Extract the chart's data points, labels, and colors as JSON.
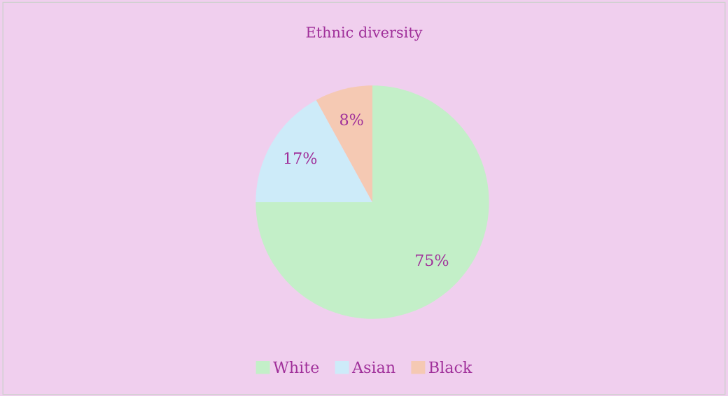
{
  "chart_data": {
    "type": "pie",
    "title": "Ethnic diversity",
    "categories": [
      "White",
      "Asian",
      "Black"
    ],
    "values": [
      75,
      17,
      8
    ],
    "colors": [
      "#c3efc8",
      "#cdebf9",
      "#f5c9b3"
    ],
    "value_labels": [
      "75%",
      "17%",
      "8%"
    ],
    "legend": "bottom"
  }
}
